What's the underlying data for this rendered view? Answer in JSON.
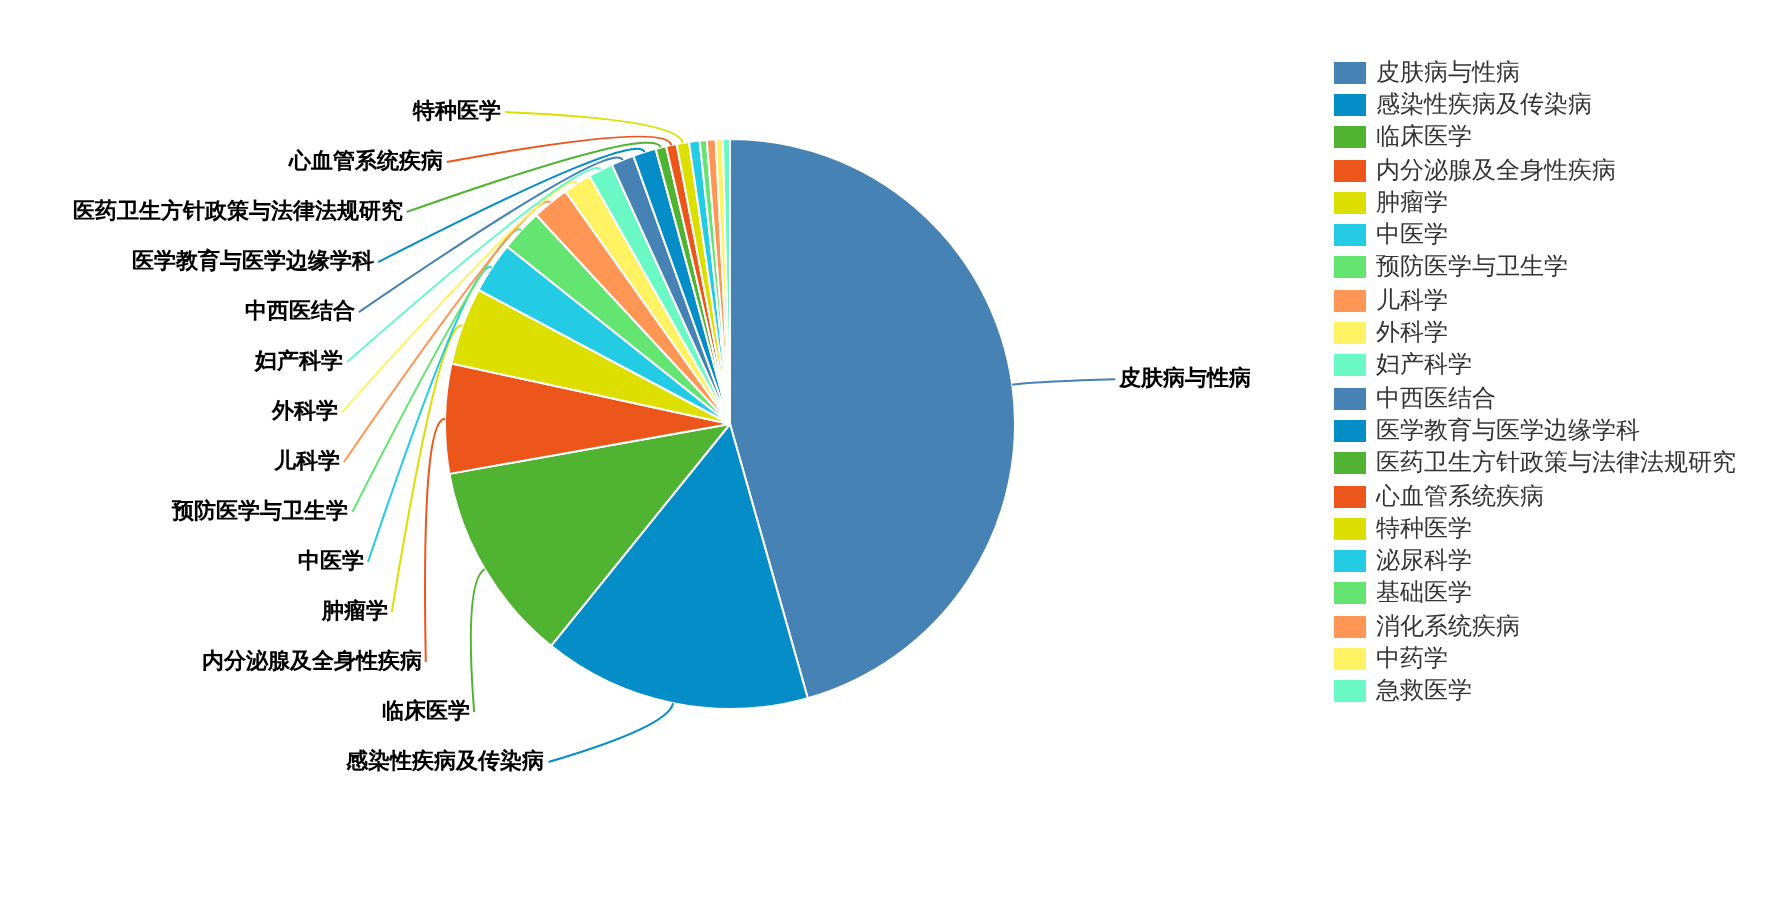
{
  "chart_data": {
    "type": "pie",
    "categories": [
      "皮肤病与性病",
      "感染性疾病及传染病",
      "临床医学",
      "内分泌腺及全身性疾病",
      "肿瘤学",
      "中医学",
      "预防医学与卫生学",
      "儿科学",
      "外科学",
      "妇产科学",
      "中西医结合",
      "医学教育与医学边缘学科",
      "医药卫生方针政策与法律法规研究",
      "心血管系统疾病",
      "特种医学",
      "泌尿科学",
      "基础医学",
      "消化系统疾病",
      "中药学",
      "急救医学"
    ],
    "values": [
      45.6,
      15.2,
      11.4,
      6.2,
      4.4,
      2.9,
      2.4,
      2.1,
      1.6,
      1.4,
      1.3,
      1.3,
      0.6,
      0.6,
      0.7,
      0.6,
      0.4,
      0.5,
      0.4,
      0.4
    ],
    "colors": [
      "#4682b4",
      "#058dc7",
      "#50b432",
      "#ed561b",
      "#dddf00",
      "#24cbe5",
      "#64e572",
      "#ff9655",
      "#fff263",
      "#6af9c4",
      "#4682b4",
      "#058dc7",
      "#50b432",
      "#ed561b",
      "#dddf00",
      "#24cbe5",
      "#64e572",
      "#ff9655",
      "#fff263",
      "#6af9c4"
    ],
    "legend": "top right"
  }
}
